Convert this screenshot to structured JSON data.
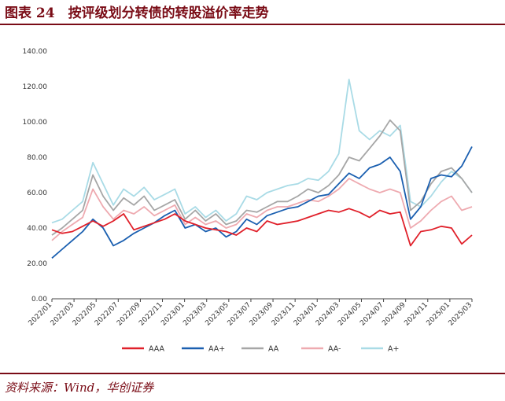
{
  "header": {
    "title": "图表 24　按评级划分转债的转股溢价率走势"
  },
  "footer": {
    "source": "资料来源：Wind，华创证券"
  },
  "chart_data": {
    "type": "line",
    "title": "",
    "xlabel": "",
    "ylabel": "",
    "ylim": [
      0,
      140
    ],
    "yticks": [
      "0.00",
      "20.00",
      "40.00",
      "60.00",
      "80.00",
      "100.00",
      "120.00",
      "140.00"
    ],
    "xticks": [
      "2022/01",
      "2022/03",
      "2022/05",
      "2022/07",
      "2022/09",
      "2022/11",
      "2023/01",
      "2023/03",
      "2023/05",
      "2023/07",
      "2023/09",
      "2023/11",
      "2024/01",
      "2024/03",
      "2024/05",
      "2024/07",
      "2024/09",
      "2024/11",
      "2025/01",
      "2025/03"
    ],
    "legend_position": "bottom",
    "x": [
      0,
      1,
      2,
      3,
      4,
      5,
      6,
      7,
      8,
      9,
      10,
      11,
      12,
      13,
      14,
      15,
      16,
      17,
      18,
      19,
      20,
      21,
      22,
      23,
      24,
      25,
      26,
      27,
      28,
      29,
      30,
      31,
      32,
      33,
      34,
      35,
      36,
      37,
      38,
      39,
      40,
      41
    ],
    "series": [
      {
        "name": "AAA",
        "color": "#e0202a",
        "values": [
          39,
          37,
          38,
          41,
          44,
          41,
          44,
          48,
          39,
          41,
          43,
          45,
          48,
          44,
          42,
          40,
          39,
          38,
          36,
          40,
          38,
          44,
          42,
          43,
          44,
          46,
          48,
          50,
          49,
          51,
          49,
          46,
          50,
          48,
          49,
          30,
          38,
          39,
          41,
          40,
          31,
          36
        ]
      },
      {
        "name": "AA+",
        "color": "#1a5fb0",
        "values": [
          23,
          28,
          33,
          38,
          45,
          40,
          30,
          33,
          37,
          40,
          43,
          47,
          50,
          40,
          42,
          38,
          40,
          35,
          38,
          45,
          42,
          47,
          49,
          51,
          52,
          55,
          58,
          59,
          65,
          71,
          68,
          74,
          76,
          80,
          72,
          45,
          52,
          68,
          70,
          69,
          75,
          86
        ]
      },
      {
        "name": "AA",
        "color": "#a6a6a6",
        "values": [
          36,
          40,
          45,
          50,
          70,
          58,
          50,
          57,
          53,
          58,
          50,
          53,
          56,
          45,
          50,
          44,
          48,
          42,
          44,
          50,
          49,
          52,
          55,
          55,
          58,
          62,
          60,
          64,
          70,
          80,
          78,
          85,
          92,
          101,
          95,
          50,
          55,
          65,
          72,
          74,
          68,
          60
        ]
      },
      {
        "name": "AA-",
        "color": "#eeaab0",
        "values": [
          33,
          38,
          42,
          46,
          62,
          52,
          45,
          50,
          48,
          52,
          47,
          50,
          53,
          42,
          46,
          42,
          44,
          40,
          42,
          48,
          46,
          50,
          52,
          52,
          54,
          56,
          55,
          58,
          62,
          68,
          65,
          62,
          60,
          62,
          60,
          40,
          44,
          50,
          55,
          58,
          50,
          52
        ]
      },
      {
        "name": "A+",
        "color": "#a9dbe6",
        "values": [
          43,
          45,
          50,
          55,
          77,
          65,
          53,
          62,
          58,
          63,
          56,
          59,
          62,
          48,
          52,
          46,
          50,
          44,
          48,
          58,
          56,
          60,
          62,
          64,
          65,
          68,
          67,
          72,
          82,
          124,
          95,
          90,
          95,
          92,
          98,
          55,
          52,
          58,
          66,
          72,
          68,
          60
        ]
      }
    ]
  }
}
